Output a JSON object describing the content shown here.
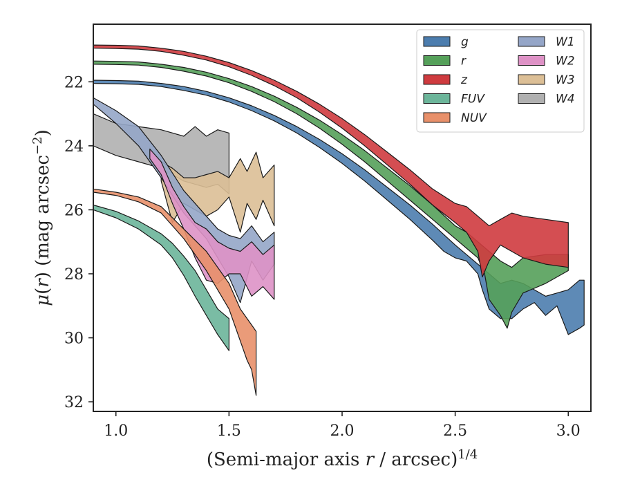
{
  "chart_data": {
    "type": "area",
    "xlabel": "(Semi-major axis r / arcsec)^{1/4}",
    "ylabel": "μ(r) (mag arcsec^{−2})",
    "xlim": [
      0.9,
      3.1
    ],
    "ylim": [
      32.3,
      20.2
    ],
    "y_inverted": true,
    "xticks": [
      "1.0",
      "1.5",
      "2.0",
      "2.5",
      "3.0"
    ],
    "yticks": [
      "22",
      "24",
      "26",
      "28",
      "30",
      "32"
    ],
    "legend": {
      "placement": "top-right",
      "columns": 2
    },
    "colors": {
      "g": "#4c7dae",
      "r": "#55a05a",
      "z": "#cf3b3f",
      "FUV": "#6cb59a",
      "NUV": "#e8906a",
      "W1": "#95a6c8",
      "W2": "#de92c6",
      "W3": "#dcbf96",
      "W4": "#b0b0b0"
    },
    "series": [
      {
        "name": "W4",
        "upper": [
          [
            0.9,
            23.0
          ],
          [
            1.0,
            23.3
          ],
          [
            1.1,
            23.4
          ],
          [
            1.2,
            23.5
          ],
          [
            1.3,
            23.7
          ],
          [
            1.35,
            23.4
          ],
          [
            1.4,
            23.7
          ],
          [
            1.45,
            23.5
          ],
          [
            1.5,
            23.6
          ]
        ],
        "lower": [
          [
            0.9,
            24.0
          ],
          [
            1.0,
            24.3
          ],
          [
            1.1,
            24.5
          ],
          [
            1.2,
            24.7
          ],
          [
            1.3,
            25.1
          ],
          [
            1.35,
            25.2
          ],
          [
            1.4,
            25.3
          ],
          [
            1.45,
            25.2
          ],
          [
            1.5,
            25.5
          ]
        ]
      },
      {
        "name": "W3",
        "upper": [
          [
            1.2,
            24.5
          ],
          [
            1.25,
            24.7
          ],
          [
            1.3,
            25.0
          ],
          [
            1.35,
            25.0
          ],
          [
            1.4,
            24.9
          ],
          [
            1.45,
            24.8
          ],
          [
            1.5,
            25.0
          ],
          [
            1.55,
            24.4
          ],
          [
            1.58,
            24.8
          ],
          [
            1.62,
            24.2
          ],
          [
            1.65,
            25.0
          ],
          [
            1.7,
            24.6
          ]
        ],
        "lower": [
          [
            1.2,
            25.1
          ],
          [
            1.25,
            26.4
          ],
          [
            1.3,
            25.8
          ],
          [
            1.35,
            26.0
          ],
          [
            1.4,
            26.2
          ],
          [
            1.45,
            26.0
          ],
          [
            1.5,
            25.6
          ],
          [
            1.55,
            26.7
          ],
          [
            1.58,
            25.8
          ],
          [
            1.62,
            26.3
          ],
          [
            1.65,
            25.7
          ],
          [
            1.7,
            26.5
          ]
        ]
      },
      {
        "name": "W1",
        "upper": [
          [
            0.9,
            22.5
          ],
          [
            1.0,
            22.9
          ],
          [
            1.1,
            23.4
          ],
          [
            1.2,
            24.3
          ],
          [
            1.3,
            25.4
          ],
          [
            1.35,
            25.8
          ],
          [
            1.4,
            26.2
          ],
          [
            1.45,
            26.6
          ],
          [
            1.5,
            26.8
          ],
          [
            1.55,
            26.9
          ],
          [
            1.6,
            26.5
          ],
          [
            1.65,
            27.0
          ],
          [
            1.7,
            26.7
          ]
        ],
        "lower": [
          [
            0.9,
            22.7
          ],
          [
            1.0,
            23.3
          ],
          [
            1.1,
            24.0
          ],
          [
            1.2,
            25.0
          ],
          [
            1.3,
            26.1
          ],
          [
            1.35,
            26.5
          ],
          [
            1.4,
            26.9
          ],
          [
            1.45,
            27.5
          ],
          [
            1.5,
            28.1
          ],
          [
            1.55,
            28.9
          ],
          [
            1.6,
            27.6
          ],
          [
            1.65,
            28.2
          ],
          [
            1.7,
            27.7
          ]
        ]
      },
      {
        "name": "W2",
        "upper": [
          [
            1.15,
            24.1
          ],
          [
            1.2,
            24.5
          ],
          [
            1.25,
            25.3
          ],
          [
            1.3,
            25.9
          ],
          [
            1.35,
            26.4
          ],
          [
            1.4,
            26.6
          ],
          [
            1.45,
            27.0
          ],
          [
            1.5,
            27.2
          ],
          [
            1.55,
            27.3
          ],
          [
            1.6,
            27.0
          ],
          [
            1.65,
            27.4
          ],
          [
            1.7,
            27.1
          ]
        ],
        "lower": [
          [
            1.15,
            24.4
          ],
          [
            1.2,
            24.9
          ],
          [
            1.25,
            25.8
          ],
          [
            1.3,
            26.6
          ],
          [
            1.35,
            27.5
          ],
          [
            1.4,
            28.2
          ],
          [
            1.45,
            28.3
          ],
          [
            1.5,
            28.0
          ],
          [
            1.55,
            28.0
          ],
          [
            1.6,
            28.7
          ],
          [
            1.65,
            28.4
          ],
          [
            1.7,
            28.8
          ]
        ]
      },
      {
        "name": "NUV",
        "upper": [
          [
            0.9,
            25.35
          ],
          [
            1.0,
            25.45
          ],
          [
            1.1,
            25.6
          ],
          [
            1.2,
            25.9
          ],
          [
            1.3,
            26.6
          ],
          [
            1.4,
            27.3
          ],
          [
            1.5,
            28.3
          ],
          [
            1.55,
            29.1
          ],
          [
            1.6,
            29.6
          ],
          [
            1.62,
            29.8
          ]
        ],
        "lower": [
          [
            0.9,
            25.45
          ],
          [
            1.0,
            25.55
          ],
          [
            1.1,
            25.75
          ],
          [
            1.2,
            26.1
          ],
          [
            1.3,
            26.9
          ],
          [
            1.4,
            27.9
          ],
          [
            1.5,
            29.1
          ],
          [
            1.55,
            30.1
          ],
          [
            1.58,
            30.7
          ],
          [
            1.6,
            31.0
          ],
          [
            1.62,
            31.8
          ]
        ]
      },
      {
        "name": "FUV",
        "upper": [
          [
            0.9,
            25.85
          ],
          [
            1.0,
            26.05
          ],
          [
            1.1,
            26.35
          ],
          [
            1.2,
            26.75
          ],
          [
            1.25,
            27.05
          ],
          [
            1.3,
            27.45
          ],
          [
            1.35,
            27.9
          ],
          [
            1.4,
            28.5
          ],
          [
            1.45,
            29.1
          ],
          [
            1.5,
            29.4
          ]
        ],
        "lower": [
          [
            0.9,
            26.0
          ],
          [
            1.0,
            26.25
          ],
          [
            1.1,
            26.6
          ],
          [
            1.2,
            27.1
          ],
          [
            1.25,
            27.5
          ],
          [
            1.3,
            28.05
          ],
          [
            1.35,
            28.7
          ],
          [
            1.4,
            29.3
          ],
          [
            1.45,
            29.9
          ],
          [
            1.5,
            30.4
          ]
        ]
      },
      {
        "name": "g",
        "upper": [
          [
            0.9,
            21.95
          ],
          [
            1.0,
            21.96
          ],
          [
            1.1,
            21.98
          ],
          [
            1.2,
            22.05
          ],
          [
            1.3,
            22.15
          ],
          [
            1.4,
            22.3
          ],
          [
            1.5,
            22.5
          ],
          [
            1.6,
            22.75
          ],
          [
            1.7,
            23.05
          ],
          [
            1.8,
            23.4
          ],
          [
            1.9,
            23.8
          ],
          [
            2.0,
            24.25
          ],
          [
            2.1,
            24.75
          ],
          [
            2.2,
            25.3
          ],
          [
            2.3,
            25.85
          ],
          [
            2.4,
            26.45
          ],
          [
            2.5,
            27.1
          ],
          [
            2.55,
            27.4
          ],
          [
            2.6,
            27.7
          ],
          [
            2.65,
            28.0
          ],
          [
            2.7,
            28.3
          ],
          [
            2.75,
            28.2
          ],
          [
            2.8,
            28.3
          ],
          [
            2.85,
            28.5
          ],
          [
            2.9,
            28.7
          ],
          [
            2.95,
            28.6
          ],
          [
            3.0,
            28.5
          ],
          [
            3.05,
            28.2
          ],
          [
            3.07,
            28.2
          ]
        ],
        "lower": [
          [
            0.9,
            22.05
          ],
          [
            1.0,
            22.06
          ],
          [
            1.1,
            22.08
          ],
          [
            1.2,
            22.15
          ],
          [
            1.3,
            22.27
          ],
          [
            1.4,
            22.42
          ],
          [
            1.5,
            22.63
          ],
          [
            1.6,
            22.9
          ],
          [
            1.7,
            23.22
          ],
          [
            1.8,
            23.6
          ],
          [
            1.9,
            24.05
          ],
          [
            2.0,
            24.55
          ],
          [
            2.1,
            25.1
          ],
          [
            2.2,
            25.7
          ],
          [
            2.3,
            26.3
          ],
          [
            2.4,
            26.95
          ],
          [
            2.45,
            27.3
          ],
          [
            2.5,
            27.5
          ],
          [
            2.55,
            27.6
          ],
          [
            2.6,
            28.0
          ],
          [
            2.62,
            28.5
          ],
          [
            2.65,
            29.1
          ],
          [
            2.7,
            29.4
          ],
          [
            2.75,
            29.4
          ],
          [
            2.8,
            29.1
          ],
          [
            2.85,
            28.9
          ],
          [
            2.9,
            29.3
          ],
          [
            2.95,
            29.0
          ],
          [
            3.0,
            29.9
          ],
          [
            3.05,
            29.7
          ],
          [
            3.07,
            29.6
          ]
        ]
      },
      {
        "name": "r",
        "upper": [
          [
            0.9,
            21.35
          ],
          [
            1.0,
            21.36
          ],
          [
            1.1,
            21.38
          ],
          [
            1.2,
            21.45
          ],
          [
            1.3,
            21.55
          ],
          [
            1.4,
            21.7
          ],
          [
            1.5,
            21.9
          ],
          [
            1.6,
            22.15
          ],
          [
            1.7,
            22.45
          ],
          [
            1.8,
            22.8
          ],
          [
            1.9,
            23.2
          ],
          [
            2.0,
            23.65
          ],
          [
            2.1,
            24.15
          ],
          [
            2.2,
            24.7
          ],
          [
            2.3,
            25.25
          ],
          [
            2.4,
            25.85
          ],
          [
            2.5,
            26.5
          ],
          [
            2.55,
            26.7
          ],
          [
            2.6,
            27.0
          ],
          [
            2.65,
            27.3
          ],
          [
            2.7,
            27.6
          ],
          [
            2.75,
            27.8
          ],
          [
            2.8,
            27.5
          ],
          [
            2.9,
            27.4
          ],
          [
            3.0,
            27.4
          ]
        ],
        "lower": [
          [
            0.9,
            21.45
          ],
          [
            1.0,
            21.46
          ],
          [
            1.1,
            21.48
          ],
          [
            1.2,
            21.55
          ],
          [
            1.3,
            21.67
          ],
          [
            1.4,
            21.82
          ],
          [
            1.5,
            22.03
          ],
          [
            1.6,
            22.3
          ],
          [
            1.7,
            22.62
          ],
          [
            1.8,
            23.0
          ],
          [
            1.9,
            23.45
          ],
          [
            2.0,
            23.95
          ],
          [
            2.1,
            24.5
          ],
          [
            2.2,
            25.1
          ],
          [
            2.3,
            25.7
          ],
          [
            2.4,
            26.3
          ],
          [
            2.5,
            26.9
          ],
          [
            2.55,
            27.2
          ],
          [
            2.6,
            27.5
          ],
          [
            2.63,
            28.0
          ],
          [
            2.65,
            28.8
          ],
          [
            2.7,
            29.3
          ],
          [
            2.73,
            29.7
          ],
          [
            2.75,
            29.2
          ],
          [
            2.8,
            28.6
          ],
          [
            2.9,
            28.3
          ],
          [
            3.0,
            27.9
          ]
        ]
      },
      {
        "name": "z",
        "upper": [
          [
            0.9,
            20.85
          ],
          [
            1.0,
            20.86
          ],
          [
            1.1,
            20.88
          ],
          [
            1.2,
            20.95
          ],
          [
            1.3,
            21.05
          ],
          [
            1.4,
            21.2
          ],
          [
            1.5,
            21.4
          ],
          [
            1.6,
            21.65
          ],
          [
            1.7,
            21.95
          ],
          [
            1.8,
            22.3
          ],
          [
            1.9,
            22.7
          ],
          [
            2.0,
            23.15
          ],
          [
            2.1,
            23.65
          ],
          [
            2.2,
            24.2
          ],
          [
            2.3,
            24.75
          ],
          [
            2.4,
            25.35
          ],
          [
            2.5,
            25.8
          ],
          [
            2.55,
            25.9
          ],
          [
            2.6,
            26.2
          ],
          [
            2.65,
            26.5
          ],
          [
            2.7,
            26.3
          ],
          [
            2.75,
            26.1
          ],
          [
            2.8,
            26.2
          ],
          [
            2.9,
            26.3
          ],
          [
            3.0,
            26.4
          ]
        ],
        "lower": [
          [
            0.9,
            20.95
          ],
          [
            1.0,
            20.96
          ],
          [
            1.1,
            20.98
          ],
          [
            1.2,
            21.05
          ],
          [
            1.3,
            21.17
          ],
          [
            1.4,
            21.32
          ],
          [
            1.5,
            21.53
          ],
          [
            1.6,
            21.8
          ],
          [
            1.7,
            22.12
          ],
          [
            1.8,
            22.5
          ],
          [
            1.9,
            22.95
          ],
          [
            2.0,
            23.45
          ],
          [
            2.1,
            24.0
          ],
          [
            2.2,
            24.6
          ],
          [
            2.3,
            25.2
          ],
          [
            2.4,
            25.85
          ],
          [
            2.5,
            26.4
          ],
          [
            2.55,
            26.7
          ],
          [
            2.6,
            27.3
          ],
          [
            2.62,
            28.1
          ],
          [
            2.65,
            27.6
          ],
          [
            2.7,
            27.1
          ],
          [
            2.75,
            27.3
          ],
          [
            2.8,
            27.5
          ],
          [
            2.9,
            27.7
          ],
          [
            3.0,
            27.8
          ]
        ]
      }
    ],
    "legend_order": [
      "g",
      "r",
      "z",
      "FUV",
      "NUV",
      "W1",
      "W2",
      "W3",
      "W4"
    ]
  }
}
